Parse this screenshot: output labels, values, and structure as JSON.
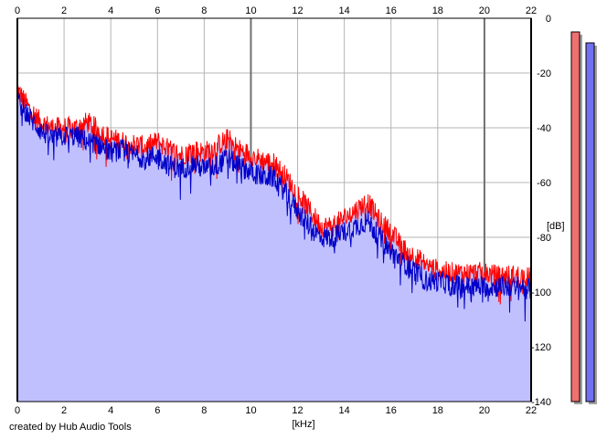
{
  "credit": "created by Hub Audio Tools",
  "chart_data": {
    "type": "area",
    "xlabel": "[kHz]",
    "ylabel": "[dB]",
    "xlim": [
      0,
      22
    ],
    "ylim": [
      -140,
      0
    ],
    "x_ticks": [
      0,
      2,
      4,
      6,
      8,
      10,
      12,
      14,
      16,
      18,
      20,
      22
    ],
    "y_ticks": [
      0,
      -20,
      -40,
      -60,
      -80,
      -100,
      -120,
      -140
    ],
    "y_tick_labels": [
      "0",
      "-20",
      "-40",
      "-60",
      "-80",
      "-100",
      "-120",
      "-140"
    ],
    "grid": true,
    "x": [
      0,
      0.5,
      1,
      1.5,
      2,
      2.5,
      3,
      3.5,
      4,
      4.5,
      5,
      5.5,
      6,
      6.5,
      7,
      7.5,
      8,
      8.5,
      9,
      9.5,
      10,
      10.5,
      11,
      11.5,
      12,
      12.5,
      13,
      13.5,
      14,
      14.5,
      15,
      15.5,
      16,
      16.5,
      17,
      17.5,
      18,
      18.5,
      19,
      19.5,
      20,
      20.5,
      21,
      21.5,
      22
    ],
    "series": [
      {
        "color": "#ff0000",
        "values": [
          -26,
          -33,
          -38,
          -40,
          -40,
          -40,
          -38,
          -41,
          -44,
          -45,
          -46,
          -47,
          -45,
          -48,
          -50,
          -48,
          -49,
          -47,
          -44,
          -48,
          -50,
          -52,
          -53,
          -58,
          -64,
          -70,
          -76,
          -76,
          -73,
          -70,
          -67,
          -74,
          -78,
          -84,
          -87,
          -90,
          -92,
          -93,
          -93,
          -93,
          -93,
          -94,
          -94,
          -94,
          -95
        ]
      },
      {
        "color": "#0000c8",
        "values": [
          -30,
          -36,
          -41,
          -44,
          -43,
          -43,
          -45,
          -46,
          -49,
          -48,
          -50,
          -51,
          -50,
          -54,
          -55,
          -53,
          -55,
          -54,
          -51,
          -54,
          -56,
          -58,
          -58,
          -64,
          -70,
          -76,
          -80,
          -80,
          -78,
          -76,
          -74,
          -80,
          -85,
          -89,
          -92,
          -96,
          -96,
          -97,
          -98,
          -98,
          -98,
          -98,
          -98,
          -98,
          -99
        ]
      }
    ],
    "fill_color": "#c0c0ff",
    "level_meters": [
      {
        "color": "#f07070",
        "level_db": -5
      },
      {
        "color": "#7070f0",
        "level_db": -9
      }
    ]
  }
}
